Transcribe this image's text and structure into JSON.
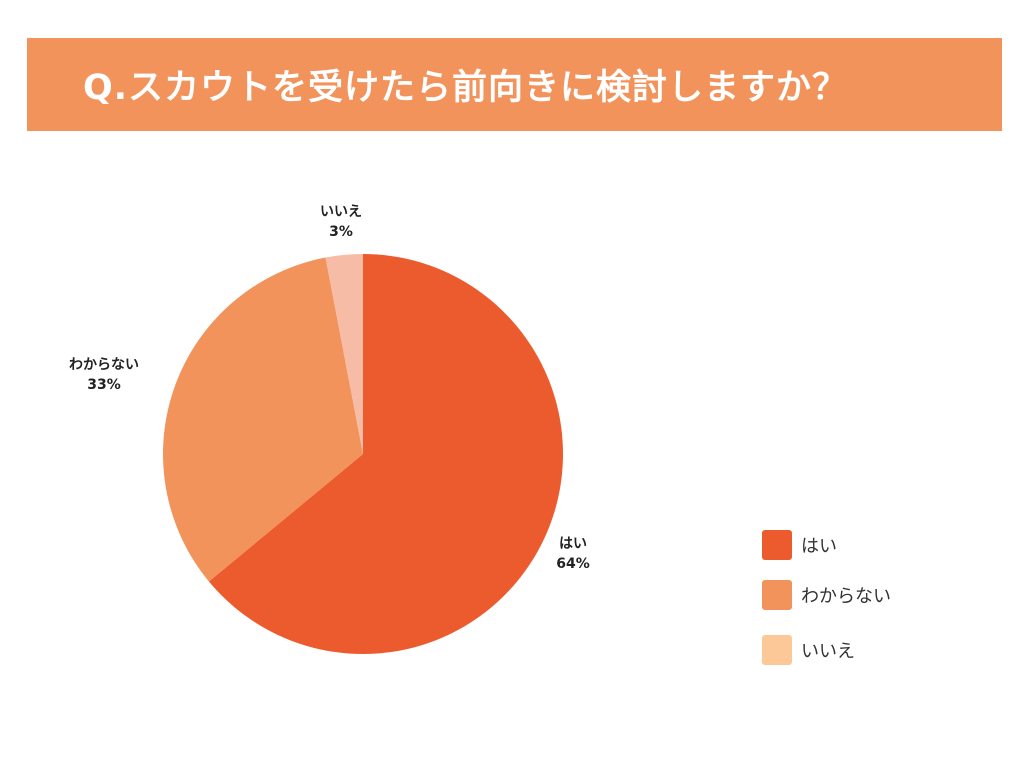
{
  "title": "Q.スカウトを受けたら前向きに検討しますか？",
  "colors": {
    "banner": "#f2935c",
    "title_text": "#ffffff",
    "label_text": "#222222"
  },
  "chart_data": {
    "type": "pie",
    "title": "Q.スカウトを受けたら前向きに検討しますか？",
    "start": "top, clockwise",
    "slices": [
      {
        "label": "はい",
        "value": 64,
        "display": "64%",
        "color": "#ec5b2d"
      },
      {
        "label": "わからない",
        "value": 33,
        "display": "33%",
        "color": "#f2935c"
      },
      {
        "label": "いいえ",
        "value": 3,
        "display": "3%",
        "color": "#f7bca6"
      }
    ],
    "legend": {
      "position": "right",
      "items": [
        {
          "label": "はい",
          "color": "#ec5b2d"
        },
        {
          "label": "わからない",
          "color": "#f2935c"
        },
        {
          "label": "いいえ",
          "color": "#fdc897"
        }
      ]
    }
  }
}
